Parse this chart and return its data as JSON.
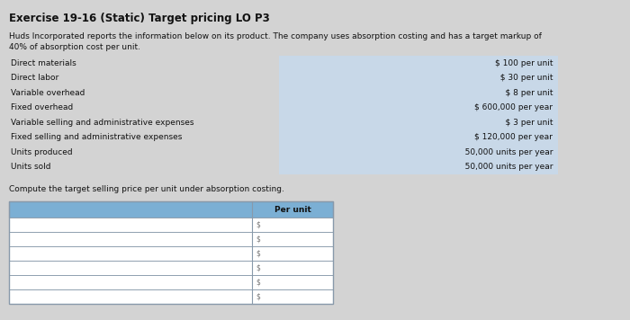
{
  "title": "Exercise 19-16 (Static) Target pricing LO P3",
  "desc1": "Huds Incorporated reports the information below on its product. The company uses absorption costing and has a target markup of",
  "desc2": "40% of absorption cost per unit.",
  "labels": [
    "Direct materials",
    "Direct labor",
    "Variable overhead",
    "Fixed overhead",
    "Variable selling and administrative expenses",
    "Fixed selling and administrative expenses",
    "Units produced",
    "Units sold"
  ],
  "values": [
    "$ 100 per unit",
    "  $ 30 per unit",
    "    $ 8 per unit",
    "$ 600,000 per year",
    "    $ 3 per unit",
    "$ 120,000 per year",
    "   50,000 units per year",
    "   50,000 units per year"
  ],
  "compute_label": "Compute the target selling price per unit under absorption costing.",
  "table_header": "Per unit",
  "num_table_rows": 6,
  "bg_color": "#d3d3d3",
  "info_bg": "#c8d8e8",
  "header_bg": "#7bafd4",
  "table_bg": "#ffffff",
  "border_color": "#8899aa",
  "title_fontsize": 8.5,
  "body_fontsize": 6.5,
  "table_label_fontsize": 6.5
}
